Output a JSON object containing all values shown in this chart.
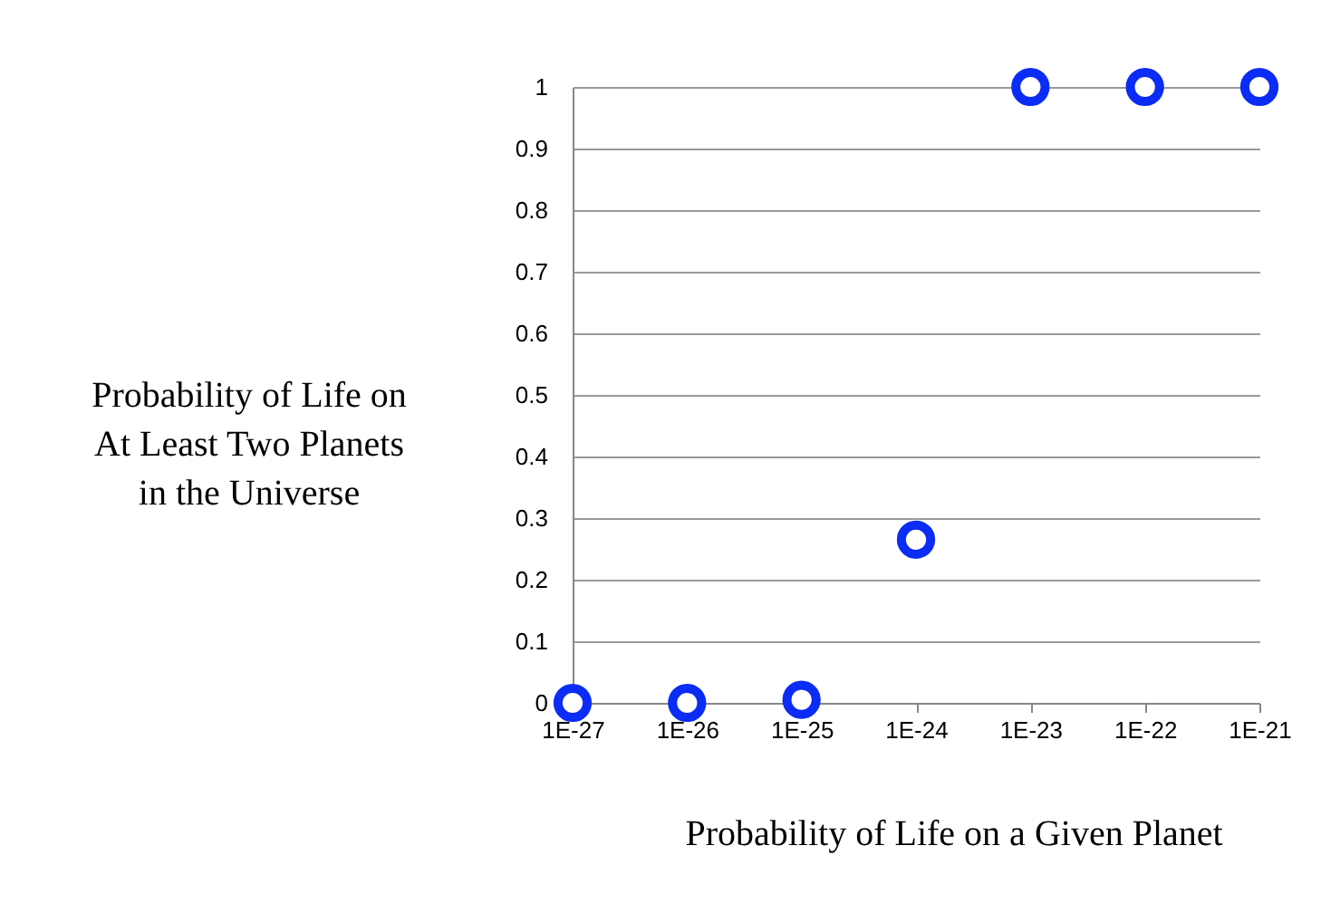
{
  "chart_data": {
    "type": "scatter",
    "xlabel": "Probability of Life on a Given Planet",
    "ylabel": "Probability of Life on\nAt Least Two Planets\nin the Universe",
    "categories": [
      "1E-27",
      "1E-26",
      "1E-25",
      "1E-24",
      "1E-23",
      "1E-22",
      "1E-21"
    ],
    "series": [
      {
        "color": "#0a2cf5",
        "values": [
          0,
          0,
          0.005,
          0.265,
          1,
          1,
          1
        ]
      }
    ],
    "ylim": [
      0,
      1
    ],
    "yticks": [
      0,
      0.1,
      0.2,
      0.3,
      0.4,
      0.5,
      0.6,
      0.7,
      0.8,
      0.9,
      1
    ],
    "grid": "y",
    "marker": "circle",
    "legend": false
  }
}
